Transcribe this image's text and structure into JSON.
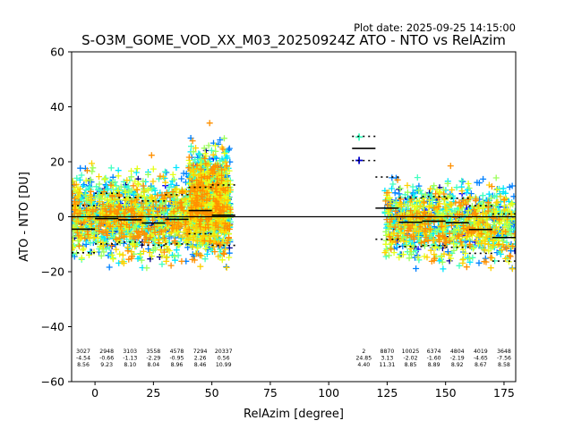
{
  "chart_data": {
    "type": "scatter",
    "title": "S-O3M_GOME_VOD_XX_M03_20250924Z ATO - NTO vs RelAzim",
    "plot_date": "Plot date: 2025-09-25 14:15:00",
    "xlabel": "RelAzim [degree]",
    "ylabel": "ATO - NTO [DU]",
    "xlim": [
      -10,
      180
    ],
    "ylim": [
      -60,
      60
    ],
    "xticks": [
      0,
      25,
      50,
      75,
      100,
      125,
      150,
      175
    ],
    "yticks": [
      -60,
      -40,
      -20,
      0,
      20,
      40,
      60
    ],
    "x_tick_labels": [
      "0",
      "25",
      "50",
      "75",
      "100",
      "125",
      "150",
      "175"
    ],
    "y_tick_labels": [
      "−60",
      "−40",
      "−20",
      "0",
      "20",
      "40",
      "60"
    ],
    "zero_line": 0,
    "marker": "+",
    "colormap": [
      "#00008b",
      "#0000ff",
      "#0080ff",
      "#00e5ff",
      "#40ffbf",
      "#9cff5a",
      "#e6ff1a",
      "#ffd000",
      "#ff9000"
    ],
    "bins": [
      {
        "x0": -10,
        "x1": 0,
        "count": "3027",
        "mean": "-4.54",
        "std": "8.56",
        "mean_val": -4.54,
        "std_val": 8.56
      },
      {
        "x0": 0,
        "x1": 10,
        "count": "2948",
        "mean": "-0.66",
        "std": "9.23",
        "mean_val": -0.66,
        "std_val": 9.23
      },
      {
        "x0": 10,
        "x1": 20,
        "count": "3103",
        "mean": "-1.13",
        "std": "8.10",
        "mean_val": -1.13,
        "std_val": 8.1
      },
      {
        "x0": 20,
        "x1": 30,
        "count": "3558",
        "mean": "-2.29",
        "std": "8.04",
        "mean_val": -2.29,
        "std_val": 8.04
      },
      {
        "x0": 30,
        "x1": 40,
        "count": "4578",
        "mean": "-0.95",
        "std": "8.96",
        "mean_val": -0.95,
        "std_val": 8.96
      },
      {
        "x0": 40,
        "x1": 50,
        "count": "7294",
        "mean": "2.26",
        "std": "8.46",
        "mean_val": 2.26,
        "std_val": 8.46
      },
      {
        "x0": 50,
        "x1": 60,
        "count": "20337",
        "mean": "0.56",
        "std": "10.99",
        "mean_val": 0.56,
        "std_val": 10.99
      },
      {
        "x0": 110,
        "x1": 120,
        "count": "2",
        "mean": "24.85",
        "std": "4.40",
        "mean_val": 24.85,
        "std_val": 4.4
      },
      {
        "x0": 120,
        "x1": 130,
        "count": "8870",
        "mean": "3.13",
        "std": "11.31",
        "mean_val": 3.13,
        "std_val": 11.31
      },
      {
        "x0": 130,
        "x1": 140,
        "count": "10025",
        "mean": "-2.02",
        "std": "8.85",
        "mean_val": -2.02,
        "std_val": 8.85
      },
      {
        "x0": 140,
        "x1": 150,
        "count": "6374",
        "mean": "-1.60",
        "std": "8.89",
        "mean_val": -1.6,
        "std_val": 8.89
      },
      {
        "x0": 150,
        "x1": 160,
        "count": "4804",
        "mean": "-2.19",
        "std": "8.92",
        "mean_val": -2.19,
        "std_val": 8.92
      },
      {
        "x0": 160,
        "x1": 170,
        "count": "4019",
        "mean": "-4.65",
        "std": "8.67",
        "mean_val": -4.65,
        "std_val": 8.67
      },
      {
        "x0": 170,
        "x1": 180,
        "count": "3648",
        "mean": "-7.56",
        "std": "8.58",
        "mean_val": -7.56,
        "std_val": 8.58
      }
    ],
    "clusters": [
      {
        "x0": -10,
        "x1": 58,
        "center": 0,
        "spread": 24,
        "density": 2600
      },
      {
        "x0": 40,
        "x1": 58,
        "center": 8,
        "spread": 28,
        "density": 900
      },
      {
        "x0": 124,
        "x1": 180,
        "center": -2,
        "spread": 22,
        "density": 2400
      }
    ],
    "isolated_points": [
      {
        "x": 113,
        "y": 29
      },
      {
        "x": 113,
        "y": 20.5
      }
    ]
  }
}
